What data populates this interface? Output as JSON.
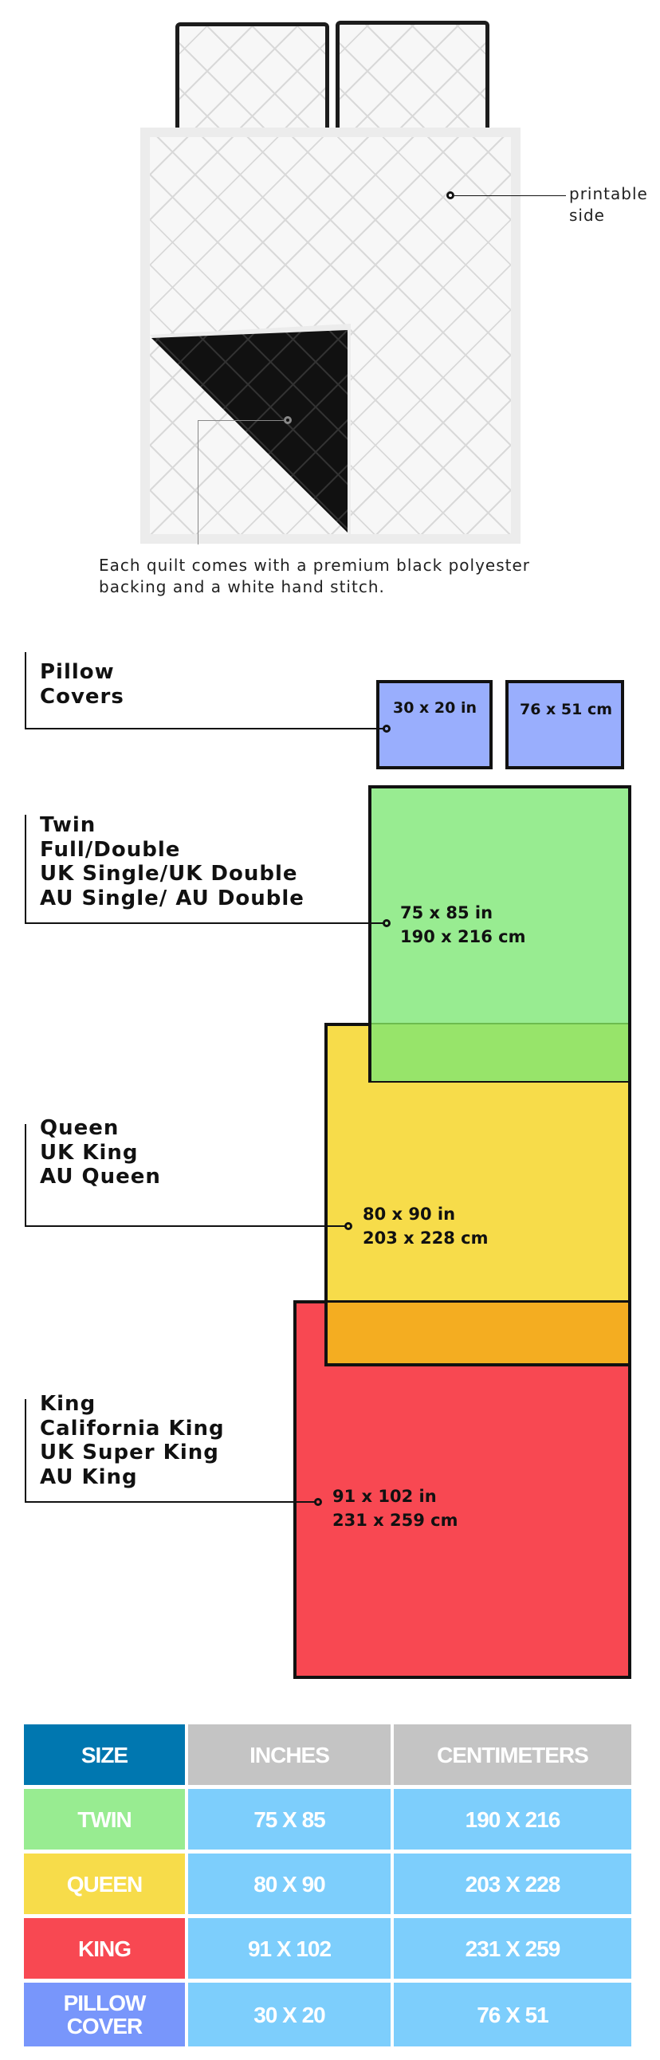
{
  "product_image": {
    "printable_label": [
      "printable",
      "side"
    ],
    "caption": [
      "Each quilt comes with a premium black polyester",
      "backing and a white hand stitch."
    ]
  },
  "size_chart": {
    "pillow": {
      "labels": [
        "Pillow",
        "Covers"
      ],
      "inches": "30 x 20 in",
      "cm": "76 x 51 cm",
      "color": "#99aefd"
    },
    "twin": {
      "labels": [
        "Twin",
        "Full/Double",
        "UK Single/UK Double",
        "AU Single/ AU Double"
      ],
      "inches": "75 x 85 in",
      "cm": "190 x 216 cm",
      "color": "#98ec91"
    },
    "queen": {
      "labels": [
        "Queen",
        "UK King",
        "AU Queen"
      ],
      "inches": "80 x 90 in",
      "cm": "203 x 228 cm",
      "color": "#f7dc4a"
    },
    "king": {
      "labels": [
        "King",
        "California King",
        "UK Super King",
        "AU King"
      ],
      "inches": "91 x 102 in",
      "cm": "231 x 259 cm",
      "color": "#f84852"
    }
  },
  "table": {
    "headers": [
      "SIZE",
      "INCHES",
      "CENTIMETERS"
    ],
    "rows": [
      {
        "size": "TWIN",
        "inches": "75 X 85",
        "cm": "190 X 216",
        "color": "#98ec91"
      },
      {
        "size": "QUEEN",
        "inches": "80 X 90",
        "cm": "203 X 228",
        "color": "#f7dc4a"
      },
      {
        "size": "KING",
        "inches": "91 X 102",
        "cm": "231 X 259",
        "color": "#f84852"
      },
      {
        "size_lines": [
          "PILLOW",
          "COVER"
        ],
        "inches": "30 X 20",
        "cm": "76 X 51",
        "color": "#7896fb"
      }
    ],
    "header_colors": {
      "size": "#0077b0",
      "other": "#c4c4c4"
    },
    "cell_color": "#7dcefc"
  }
}
